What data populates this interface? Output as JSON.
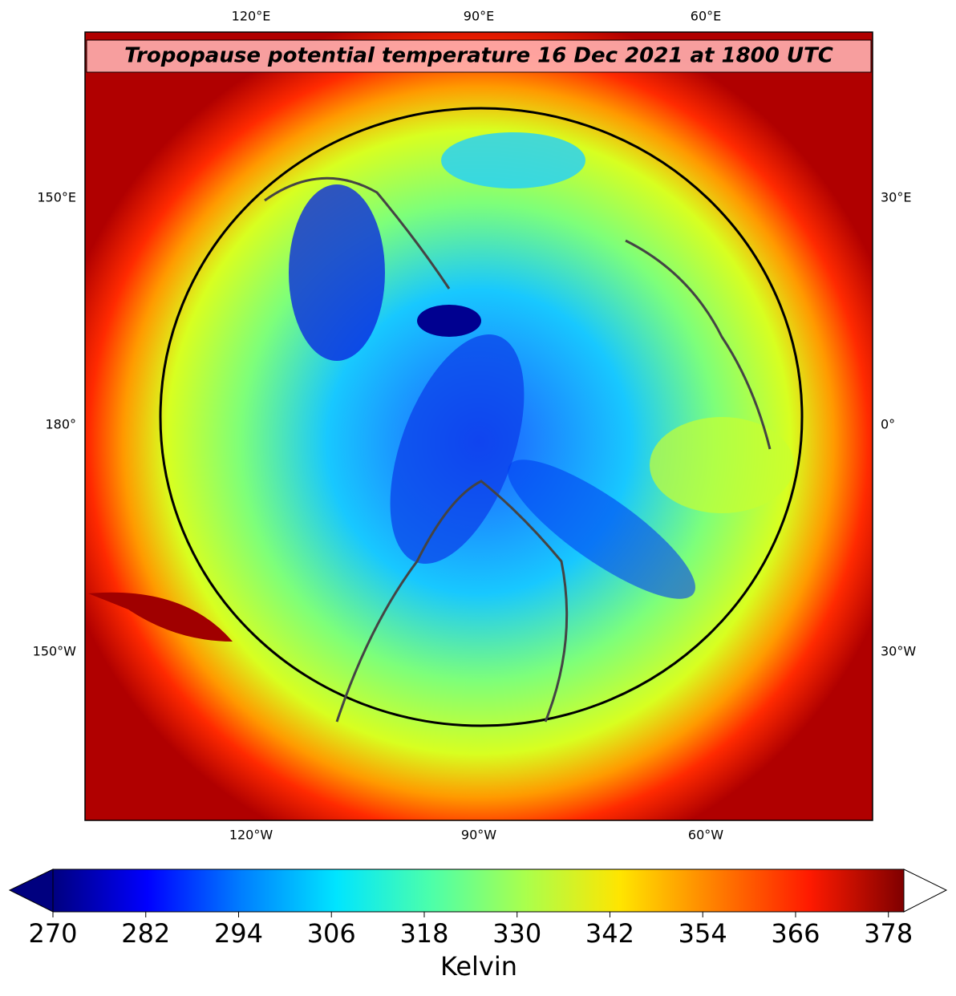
{
  "map": {
    "title": "Tropopause potential temperature 16 Dec 2021 at 1800 UTC",
    "labels_top": [
      "120°E",
      "90°E",
      "60°E"
    ],
    "labels_bottom": [
      "120°W",
      "90°W",
      "60°W"
    ],
    "labels_left": [
      "150°E",
      "180°",
      "150°W"
    ],
    "labels_right": [
      "30°E",
      "0°",
      "30°W"
    ]
  },
  "colorbar": {
    "label": "Kelvin",
    "lim": [
      270,
      380
    ],
    "ticks": [
      270,
      282,
      294,
      306,
      318,
      330,
      342,
      354,
      366,
      378
    ],
    "colormap": [
      "#00007f",
      "#0000ff",
      "#007fff",
      "#00e5ff",
      "#4cffaa",
      "#aaff4c",
      "#ffe500",
      "#ff7f00",
      "#ff1a00",
      "#7f0000"
    ]
  }
}
